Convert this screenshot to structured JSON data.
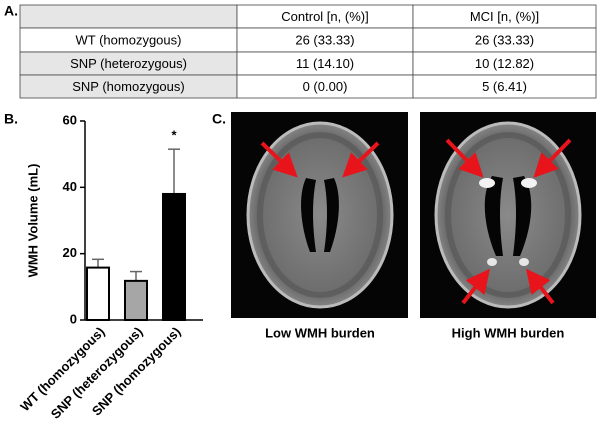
{
  "panel_labels": [
    "A.",
    "B.",
    "C."
  ],
  "table": {
    "header": [
      "Control [n, (%)]",
      "MCI [n, (%)]"
    ],
    "rows": [
      [
        "WT (homozygous)",
        "26 (33.33)",
        "26 (33.33)"
      ],
      [
        "SNP (heterozygous)",
        "11 (14.10)",
        "10 (12.82)"
      ],
      [
        "SNP (homozygous)",
        "0 (0.00)",
        "5 (6.41)"
      ]
    ]
  },
  "chart_data": {
    "type": "bar",
    "ylabel": "WMH Volume (mL)",
    "categories": [
      "WT (homozygous)",
      "SNP (heterozygous)",
      "SNP (homozygous)"
    ],
    "values": [
      15.8,
      11.8,
      38
    ],
    "errors": [
      2.5,
      2.8,
      13.5
    ],
    "colors": [
      "#ffffff",
      "#a6a6a6",
      "#000000"
    ],
    "edgecolor": "#000000",
    "significance": "*",
    "ylim": [
      0,
      60
    ],
    "yticks": [
      0,
      20,
      40,
      60
    ]
  },
  "images": [
    {
      "caption": "Low WMH burden"
    },
    {
      "caption": "High WMH burden"
    }
  ]
}
